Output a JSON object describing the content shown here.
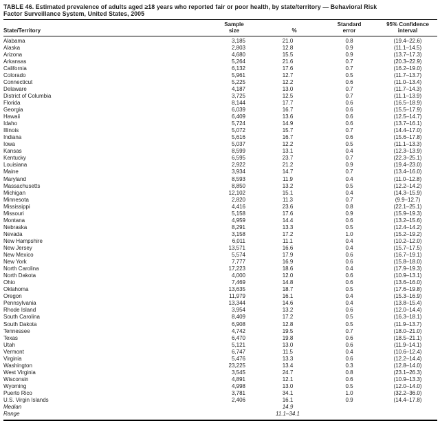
{
  "table": {
    "title_line1": "TABLE 46. Estimated prevalence of adults aged ≥18 years who reported fair or poor health, by state/territory — Behavioral Risk",
    "title_line2": "Factor Surveillance System, United States, 2005",
    "columns": {
      "state": "State/Territory",
      "sample_line1": "Sample",
      "sample_line2": "size",
      "pct": "%",
      "se_line1": "Standard",
      "se_line2": "error",
      "ci_line1": "95% Confidence",
      "ci_line2": "interval"
    },
    "rows": [
      [
        "Alabama",
        "3,185",
        "21.0",
        "0.8",
        "(19.4–22.6)"
      ],
      [
        "Alaska",
        "2,803",
        "12.8",
        "0.9",
        "(11.1–14.5)"
      ],
      [
        "Arizona",
        "4,680",
        "15.5",
        "0.9",
        "(13.7–17.3)"
      ],
      [
        "Arkansas",
        "5,264",
        "21.6",
        "0.7",
        "(20.3–22.9)"
      ],
      [
        "California",
        "6,132",
        "17.6",
        "0.7",
        "(16.2–19.0)"
      ],
      [
        "Colorado",
        "5,961",
        "12.7",
        "0.5",
        "(11.7–13.7)"
      ],
      [
        "Connecticut",
        "5,225",
        "12.2",
        "0.6",
        "(11.0–13.4)"
      ],
      [
        "Delaware",
        "4,187",
        "13.0",
        "0.7",
        "(11.7–14.3)"
      ],
      [
        "District of Columbia",
        "3,725",
        "12.5",
        "0.7",
        "(11.1–13.9)"
      ],
      [
        "Florida",
        "8,144",
        "17.7",
        "0.6",
        "(16.5–18.9)"
      ],
      [
        "Georgia",
        "6,039",
        "16.7",
        "0.6",
        "(15.5–17.9)"
      ],
      [
        "Hawaii",
        "6,409",
        "13.6",
        "0.6",
        "(12.5–14.7)"
      ],
      [
        "Idaho",
        "5,724",
        "14.9",
        "0.6",
        "(13.7–16.1)"
      ],
      [
        "Illinois",
        "5,072",
        "15.7",
        "0.7",
        "(14.4–17.0)"
      ],
      [
        "Indiana",
        "5,616",
        "16.7",
        "0.6",
        "(15.6–17.8)"
      ],
      [
        "Iowa",
        "5,037",
        "12.2",
        "0.5",
        "(11.1–13.3)"
      ],
      [
        "Kansas",
        "8,599",
        "13.1",
        "0.4",
        "(12.3–13.9)"
      ],
      [
        "Kentucky",
        "6,595",
        "23.7",
        "0.7",
        "(22.3–25.1)"
      ],
      [
        "Louisiana",
        "2,922",
        "21.2",
        "0.9",
        "(19.4–23.0)"
      ],
      [
        "Maine",
        "3,934",
        "14.7",
        "0.7",
        "(13.4–16.0)"
      ],
      [
        "Maryland",
        "8,593",
        "11.9",
        "0.4",
        "(11.0–12.8)"
      ],
      [
        "Massachusetts",
        "8,850",
        "13.2",
        "0.5",
        "(12.2–14.2)"
      ],
      [
        "Michigan",
        "12,102",
        "15.1",
        "0.4",
        "(14.3–15.9)"
      ],
      [
        "Minnesota",
        "2,820",
        "11.3",
        "0.7",
        "(9.9–12.7)"
      ],
      [
        "Mississippi",
        "4,416",
        "23.6",
        "0.8",
        "(22.1–25.1)"
      ],
      [
        "Missouri",
        "5,158",
        "17.6",
        "0.9",
        "(15.9–19.3)"
      ],
      [
        "Montana",
        "4,959",
        "14.4",
        "0.6",
        "(13.2–15.6)"
      ],
      [
        "Nebraska",
        "8,291",
        "13.3",
        "0.5",
        "(12.4–14.2)"
      ],
      [
        "Nevada",
        "3,158",
        "17.2",
        "1.0",
        "(15.2–19.2)"
      ],
      [
        "New Hampshire",
        "6,011",
        "11.1",
        "0.4",
        "(10.2–12.0)"
      ],
      [
        "New Jersey",
        "13,571",
        "16.6",
        "0.4",
        "(15.7–17.5)"
      ],
      [
        "New Mexico",
        "5,574",
        "17.9",
        "0.6",
        "(16.7–19.1)"
      ],
      [
        "New York",
        "7,777",
        "16.9",
        "0.6",
        "(15.8–18.0)"
      ],
      [
        "North Carolina",
        "17,223",
        "18.6",
        "0.4",
        "(17.9–19.3)"
      ],
      [
        "North Dakota",
        "4,000",
        "12.0",
        "0.6",
        "(10.9–13.1)"
      ],
      [
        "Ohio",
        "7,469",
        "14.8",
        "0.6",
        "(13.6–16.0)"
      ],
      [
        "Oklahoma",
        "13,635",
        "18.7",
        "0.5",
        "(17.6–19.8)"
      ],
      [
        "Oregon",
        "11,979",
        "16.1",
        "0.4",
        "(15.3–16.9)"
      ],
      [
        "Pennsylvania",
        "13,344",
        "14.6",
        "0.4",
        "(13.8–15.4)"
      ],
      [
        "Rhode Island",
        "3,954",
        "13.2",
        "0.6",
        "(12.0–14.4)"
      ],
      [
        "South Carolina",
        "8,409",
        "17.2",
        "0.5",
        "(16.3–18.1)"
      ],
      [
        "South Dakota",
        "6,908",
        "12.8",
        "0.5",
        "(11.9–13.7)"
      ],
      [
        "Tennessee",
        "4,742",
        "19.5",
        "0.7",
        "(18.0–21.0)"
      ],
      [
        "Texas",
        "6,470",
        "19.8",
        "0.6",
        "(18.5–21.1)"
      ],
      [
        "Utah",
        "5,121",
        "13.0",
        "0.6",
        "(11.9–14.1)"
      ],
      [
        "Vermont",
        "6,747",
        "11.5",
        "0.4",
        "(10.6–12.4)"
      ],
      [
        "Virginia",
        "5,476",
        "13.3",
        "0.6",
        "(12.2–14.4)"
      ],
      [
        "Washington",
        "23,225",
        "13.4",
        "0.3",
        "(12.8–14.0)"
      ],
      [
        "West Virginia",
        "3,545",
        "24.7",
        "0.8",
        "(23.1–26.3)"
      ],
      [
        "Wisconsin",
        "4,891",
        "12.1",
        "0.6",
        "(10.9–13.3)"
      ],
      [
        "Wyoming",
        "4,998",
        "13.0",
        "0.5",
        "(12.0–14.0)"
      ],
      [
        "Puerto Rico",
        "3,781",
        "34.1",
        "1.0",
        "(32.2–36.0)"
      ],
      [
        "U.S. Virgin Islands",
        "2,406",
        "16.1",
        "0.9",
        "(14.4–17.8)"
      ]
    ],
    "summary_rows": [
      [
        "Median",
        "",
        "14.9",
        "",
        ""
      ],
      [
        "Range",
        "",
        "11.1–34.1",
        "",
        ""
      ]
    ]
  }
}
